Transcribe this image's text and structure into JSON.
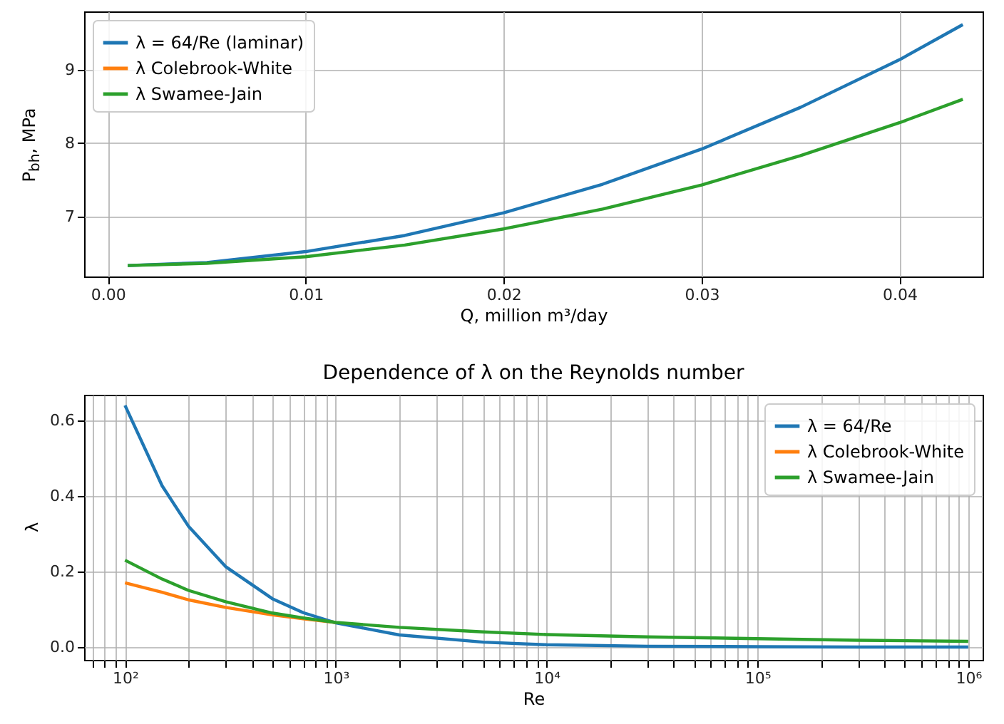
{
  "chart_data": [
    {
      "type": "line",
      "xlabel": "Q, million m³/day",
      "ylabel": "P$_{bh}$, MPa",
      "x": [
        0.001,
        0.005,
        0.01,
        0.015,
        0.02,
        0.025,
        0.03,
        0.035,
        0.04,
        0.0432
      ],
      "series": [
        {
          "name": "λ = 64/Re (laminar)",
          "color": "#1f77b4",
          "values": [
            6.33,
            6.37,
            6.52,
            6.74,
            7.05,
            7.44,
            7.92,
            8.49,
            9.14,
            9.62
          ]
        },
        {
          "name": "λ Colebrook-White",
          "color": "#ff7f0e",
          "values": [
            null,
            null,
            null,
            null,
            null,
            null,
            null,
            null,
            null,
            null
          ]
        },
        {
          "name": "λ Swamee-Jain",
          "color": "#2ca02c",
          "values": [
            6.33,
            6.36,
            6.45,
            6.61,
            6.83,
            7.1,
            7.43,
            7.83,
            8.28,
            8.6
          ]
        }
      ],
      "xlim": [
        -0.0012,
        0.0442
      ],
      "xticks": [
        {
          "value": 0,
          "label": "0.00"
        },
        0.01,
        0.02,
        0.03,
        0.04
      ],
      "ylim": [
        6.18,
        9.8
      ],
      "yticks": [
        7,
        8,
        9
      ],
      "grid": true,
      "legend": "top left"
    },
    {
      "type": "line",
      "title": "Dependence of λ on the Reynolds number",
      "xlabel": "Re",
      "ylabel": "λ",
      "log": "x",
      "x": [
        100,
        150,
        200,
        300,
        500,
        700,
        1000,
        2000,
        5000,
        10000,
        30000,
        100000,
        300000,
        1000000
      ],
      "series": [
        {
          "name": "λ = 64/Re",
          "color": "#1f77b4",
          "values": [
            0.64,
            0.427,
            0.32,
            0.213,
            0.128,
            0.091,
            0.064,
            0.032,
            0.013,
            0.006,
            0.002,
            0.001,
            0.0,
            0.0
          ]
        },
        {
          "name": "λ Colebrook-White",
          "color": "#ff7f0e",
          "values": [
            0.17,
            0.145,
            0.125,
            0.105,
            0.085,
            0.075,
            0.065,
            null,
            null,
            null,
            null,
            null,
            null,
            null
          ]
        },
        {
          "name": "λ Swamee-Jain",
          "color": "#2ca02c",
          "values": [
            0.23,
            0.18,
            0.15,
            0.12,
            0.09,
            0.077,
            0.065,
            0.052,
            0.04,
            0.033,
            0.027,
            0.022,
            0.018,
            0.015
          ]
        }
      ],
      "xlim": [
        64,
        1170000
      ],
      "xticks": [
        {
          "value": 70,
          "label": null
        },
        {
          "value": 80,
          "label": null
        },
        {
          "value": 90,
          "label": null
        },
        {
          "value": 100,
          "label": "10²"
        },
        {
          "value": 200,
          "label": null
        },
        {
          "value": 300,
          "label": null
        },
        {
          "value": 400,
          "label": null
        },
        {
          "value": 500,
          "label": null
        },
        {
          "value": 600,
          "label": null
        },
        {
          "value": 700,
          "label": null
        },
        {
          "value": 800,
          "label": null
        },
        {
          "value": 900,
          "label": null
        },
        {
          "value": 1000,
          "label": "10³"
        },
        {
          "value": 2000,
          "label": null
        },
        {
          "value": 3000,
          "label": null
        },
        {
          "value": 4000,
          "label": null
        },
        {
          "value": 5000,
          "label": null
        },
        {
          "value": 6000,
          "label": null
        },
        {
          "value": 7000,
          "label": null
        },
        {
          "value": 8000,
          "label": null
        },
        {
          "value": 9000,
          "label": null
        },
        {
          "value": 10000,
          "label": "10⁴"
        },
        {
          "value": 20000,
          "label": null
        },
        {
          "value": 30000,
          "label": null
        },
        {
          "value": 40000,
          "label": null
        },
        {
          "value": 50000,
          "label": null
        },
        {
          "value": 60000,
          "label": null
        },
        {
          "value": 70000,
          "label": null
        },
        {
          "value": 80000,
          "label": null
        },
        {
          "value": 90000,
          "label": null
        },
        {
          "value": 100000,
          "label": "10⁵"
        },
        {
          "value": 200000,
          "label": null
        },
        {
          "value": 300000,
          "label": null
        },
        {
          "value": 400000,
          "label": null
        },
        {
          "value": 500000,
          "label": null
        },
        {
          "value": 600000,
          "label": null
        },
        {
          "value": 700000,
          "label": null
        },
        {
          "value": 800000,
          "label": null
        },
        {
          "value": 900000,
          "label": null
        },
        {
          "value": 1000000,
          "label": "10⁶"
        }
      ],
      "ylim": [
        -0.034,
        0.668
      ],
      "yticks": [
        {
          "value": 0,
          "label": "0.0"
        },
        0.2,
        0.4,
        0.6
      ],
      "grid": true,
      "legend": "top right"
    }
  ]
}
